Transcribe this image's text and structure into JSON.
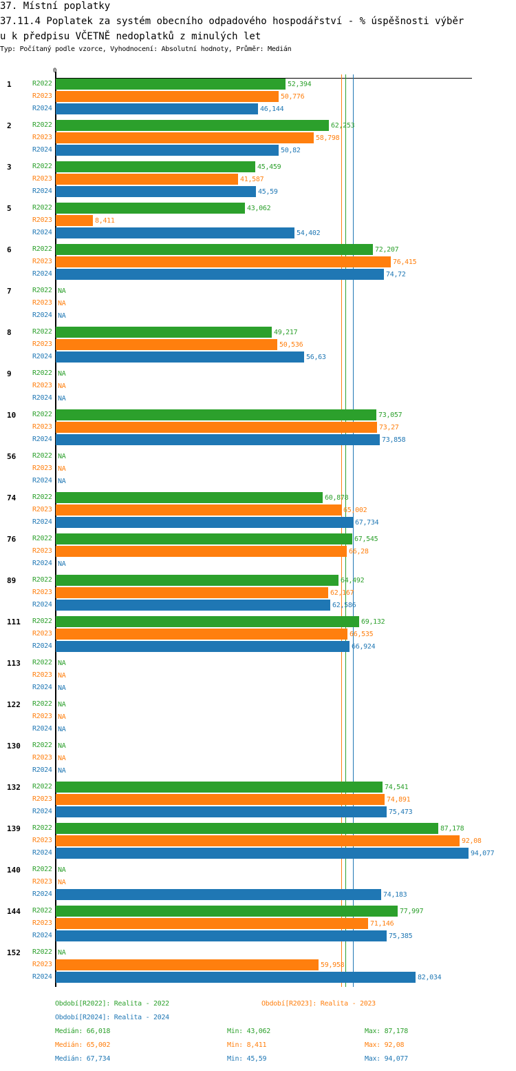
{
  "header": {
    "title": "37. Místní poplatky",
    "subtitle_line1": "37.11.4 Poplatek za systém obecního odpadového hospodářství  - % úspěšnosti výběr",
    "subtitle_line2": "u k předpisu VČETNĚ nedoplatků z minulých let",
    "info": "Typ: Počítaný podle vzorce, Vyhodnocení: Absolutní hodnoty, Průměr: Medián"
  },
  "chart_data": {
    "type": "bar",
    "orientation": "horizontal",
    "axis_zero_label": "0",
    "xlim": [
      0,
      94.077
    ],
    "na_label": "NA",
    "categories": [
      "1",
      "2",
      "3",
      "5",
      "6",
      "7",
      "8",
      "9",
      "10",
      "56",
      "74",
      "76",
      "89",
      "111",
      "113",
      "122",
      "130",
      "132",
      "139",
      "140",
      "144",
      "152"
    ],
    "series": [
      {
        "name": "R2022",
        "color": "#2ca02c",
        "values": [
          52.394,
          62.253,
          45.459,
          43.062,
          72.207,
          null,
          49.217,
          null,
          73.057,
          null,
          60.878,
          67.545,
          64.492,
          69.132,
          null,
          null,
          null,
          74.541,
          87.178,
          null,
          77.997,
          null
        ],
        "labels": [
          "52,394",
          "62,253",
          "45,459",
          "43,062",
          "72,207",
          "NA",
          "49,217",
          "NA",
          "73,057",
          "NA",
          "60,878",
          "67,545",
          "64,492",
          "69,132",
          "NA",
          "NA",
          "NA",
          "74,541",
          "87,178",
          "NA",
          "77,997",
          "NA"
        ]
      },
      {
        "name": "R2023",
        "color": "#ff7f0e",
        "values": [
          50.776,
          58.798,
          41.587,
          8.411,
          76.415,
          null,
          50.536,
          null,
          73.27,
          null,
          65.002,
          66.28,
          62.167,
          66.535,
          null,
          null,
          null,
          74.891,
          92.08,
          null,
          71.146,
          59.958
        ],
        "labels": [
          "50,776",
          "58,798",
          "41,587",
          "8,411",
          "76,415",
          "NA",
          "50,536",
          "NA",
          "73,27",
          "NA",
          "65,002",
          "66,28",
          "62,167",
          "66,535",
          "NA",
          "NA",
          "NA",
          "74,891",
          "92,08",
          "NA",
          "71,146",
          "59,958"
        ]
      },
      {
        "name": "R2024",
        "color": "#1f77b4",
        "values": [
          46.144,
          50.82,
          45.59,
          54.402,
          74.72,
          null,
          56.63,
          null,
          73.858,
          null,
          67.734,
          null,
          62.586,
          66.924,
          null,
          null,
          null,
          75.473,
          94.077,
          74.183,
          75.385,
          82.034
        ],
        "labels": [
          "46,144",
          "50,82",
          "45,59",
          "54,402",
          "74,72",
          "NA",
          "56,63",
          "NA",
          "73,858",
          "NA",
          "67,734",
          "NA",
          "62,586",
          "66,924",
          "NA",
          "NA",
          "NA",
          "75,473",
          "94,077",
          "74,183",
          "75,385",
          "82,034"
        ]
      }
    ],
    "medians": [
      66.018,
      65.002,
      67.734
    ],
    "legend": [
      {
        "text": "Období[R2022]: Realita - 2022",
        "color": "#2ca02c"
      },
      {
        "text": "Období[R2023]: Realita - 2023",
        "color": "#ff7f0e"
      },
      {
        "text": "Období[R2024]: Realita - 2024",
        "color": "#1f77b4"
      }
    ],
    "stats": [
      {
        "median": "Medián: 66,018",
        "min": "Min: 43,062",
        "max": "Max: 87,178",
        "color": "#2ca02c"
      },
      {
        "median": "Medián: 65,002",
        "min": "Min: 8,411",
        "max": "Max: 92,08",
        "color": "#ff7f0e"
      },
      {
        "median": "Medián: 67,734",
        "min": "Min: 45,59",
        "max": "Max: 94,077",
        "color": "#1f77b4"
      }
    ]
  }
}
